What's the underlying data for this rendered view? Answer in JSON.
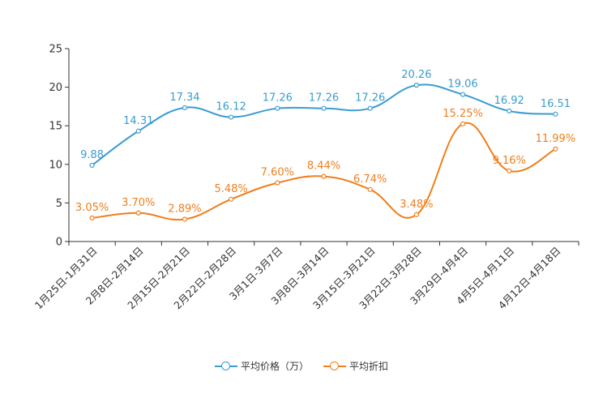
{
  "chart_data": {
    "type": "line",
    "categories": [
      "1月25日-1月31日",
      "2月8日-2月14日",
      "2月15日-2月21日",
      "2月22日-2月28日",
      "3月1日-3月7日",
      "3月8日-3月14日",
      "3月15日-3月21日",
      "3月22日-3月28日",
      "3月29日-4月4日",
      "4月5日-4月11日",
      "4月12日-4月18日"
    ],
    "ylim": [
      0,
      25
    ],
    "yticks": [
      0,
      5,
      10,
      15,
      20,
      25
    ],
    "series": [
      {
        "name": "平均价格（万）",
        "color": "#3a9ccf",
        "values": [
          9.88,
          14.31,
          17.34,
          16.12,
          17.26,
          17.26,
          17.26,
          20.26,
          19.06,
          16.92,
          16.51
        ],
        "labels": [
          "9.88",
          "14.31",
          "17.34",
          "16.12",
          "17.26",
          "17.26",
          "17.26",
          "20.26",
          "19.06",
          "16.92",
          "16.51"
        ]
      },
      {
        "name": "平均折扣",
        "color": "#f07e1b",
        "values": [
          3.05,
          3.7,
          2.89,
          5.48,
          7.6,
          8.44,
          6.74,
          3.48,
          15.25,
          9.16,
          11.99
        ],
        "labels": [
          "3.05%",
          "3.70%",
          "2.89%",
          "5.48%",
          "7.60%",
          "8.44%",
          "6.74%",
          "3.48%",
          "15.25%",
          "9.16%",
          "11.99%"
        ]
      }
    ]
  }
}
